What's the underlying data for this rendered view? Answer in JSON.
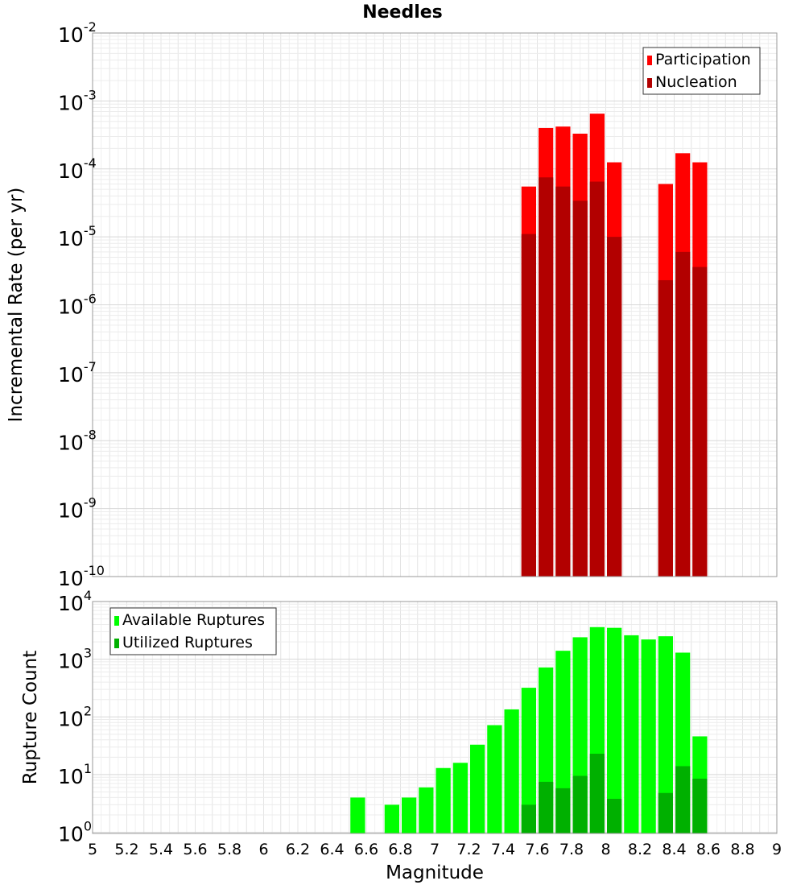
{
  "chart_data": [
    {
      "type": "bar",
      "title": "Needles",
      "xlabel": "",
      "ylabel": "Incremental Rate (per yr)",
      "xlim": [
        5,
        9
      ],
      "ylim_log10": [
        -10,
        -2
      ],
      "yscale": "log",
      "grid": true,
      "legend_position": "top-right",
      "y_tick_labels": [
        {
          "base": "10",
          "exp": "-2"
        },
        {
          "base": "10",
          "exp": "-3"
        },
        {
          "base": "10",
          "exp": "-4"
        },
        {
          "base": "10",
          "exp": "-5"
        },
        {
          "base": "10",
          "exp": "-6"
        },
        {
          "base": "10",
          "exp": "-7"
        },
        {
          "base": "10",
          "exp": "-8"
        },
        {
          "base": "10",
          "exp": "-9"
        },
        {
          "base": "10",
          "exp": "-10"
        }
      ],
      "categories": [
        7.55,
        7.65,
        7.75,
        7.85,
        7.95,
        8.05,
        8.35,
        8.45,
        8.55
      ],
      "series": [
        {
          "name": "Participation",
          "color": "#ff0000",
          "values": [
            5.5e-05,
            0.0004,
            0.00042,
            0.00033,
            0.00065,
            0.000125,
            6e-05,
            0.00017,
            0.000125
          ]
        },
        {
          "name": "Nucleation",
          "color": "#b20000",
          "values": [
            1.1e-05,
            7.5e-05,
            5.5e-05,
            3.4e-05,
            6.5e-05,
            1e-05,
            2.3e-06,
            6e-06,
            3.6e-06
          ]
        }
      ]
    },
    {
      "type": "bar",
      "title": "",
      "xlabel": "Magnitude",
      "ylabel": "Rupture Count",
      "xlim": [
        5,
        9
      ],
      "ylim_log10": [
        -0.02,
        4
      ],
      "yscale": "log",
      "grid": true,
      "legend_position": "top-left",
      "x_tick_labels": [
        "5",
        "5.2",
        "5.4",
        "5.6",
        "5.8",
        "6",
        "6.2",
        "6.4",
        "6.6",
        "6.8",
        "7",
        "7.2",
        "7.4",
        "7.6",
        "7.8",
        "8",
        "8.2",
        "8.4",
        "8.6",
        "8.8",
        "9"
      ],
      "y_tick_labels": [
        {
          "base": "10",
          "exp": "4"
        },
        {
          "base": "10",
          "exp": "3"
        },
        {
          "base": "10",
          "exp": "2"
        },
        {
          "base": "10",
          "exp": "1"
        },
        {
          "base": "10",
          "exp": "0"
        }
      ],
      "categories": [
        6.55,
        6.75,
        6.85,
        6.95,
        7.05,
        7.15,
        7.25,
        7.35,
        7.45,
        7.55,
        7.65,
        7.75,
        7.85,
        7.95,
        8.05,
        8.15,
        8.25,
        8.35,
        8.45,
        8.55
      ],
      "series": [
        {
          "name": "Available Ruptures",
          "color": "#00ff00",
          "values": [
            4,
            3,
            4,
            6,
            13,
            16,
            33,
            72,
            135,
            320,
            720,
            1400,
            2400,
            3600,
            3500,
            2600,
            2200,
            2500,
            1300,
            46
          ]
        },
        {
          "name": "Utilized Ruptures",
          "color": "#00b000",
          "values": [
            null,
            null,
            null,
            null,
            null,
            null,
            null,
            null,
            null,
            3,
            7.5,
            5.8,
            9.5,
            23,
            3.8,
            null,
            null,
            4.8,
            14,
            8.5
          ]
        }
      ]
    }
  ]
}
